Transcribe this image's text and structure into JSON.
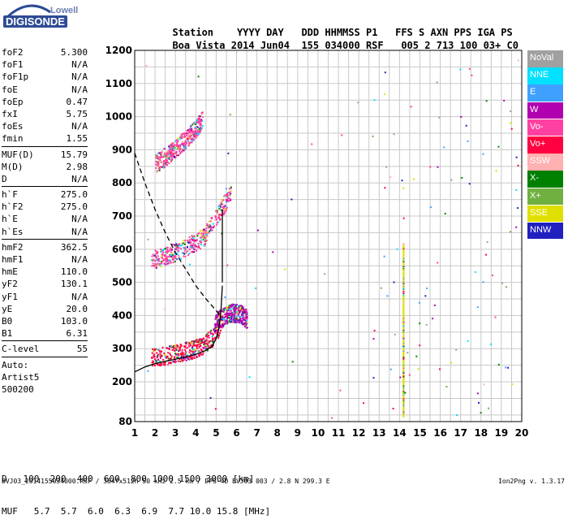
{
  "logo": {
    "top": "Lowell",
    "bottom": "DIGISONDE"
  },
  "header": {
    "labels": [
      "Station",
      "YYYY",
      "DAY",
      "DDD",
      "HHMMSS",
      "P1",
      "FFS",
      "S",
      "AXN",
      "PPS",
      "IGA",
      "PS"
    ],
    "values": [
      "Boa Vista",
      "2014",
      "Jun04",
      "155",
      "034000",
      "RSF",
      "005",
      "2",
      "713",
      "100",
      "03+",
      "C0"
    ]
  },
  "params": [
    [
      {
        "k": "foF2",
        "v": "5.300"
      },
      {
        "k": "foF1",
        "v": "N/A"
      },
      {
        "k": "foF1p",
        "v": "N/A"
      },
      {
        "k": "foE",
        "v": "N/A"
      },
      {
        "k": "foEp",
        "v": "0.47"
      },
      {
        "k": "fxI",
        "v": "5.75"
      },
      {
        "k": "foEs",
        "v": "N/A"
      },
      {
        "k": "fmin",
        "v": "1.55"
      }
    ],
    [
      {
        "k": "MUF(D)",
        "v": "15.79"
      },
      {
        "k": "M(D)",
        "v": "2.98"
      },
      {
        "k": "D",
        "v": "N/A"
      }
    ],
    [
      {
        "k": "h`F",
        "v": "275.0"
      },
      {
        "k": "h`F2",
        "v": "275.0"
      },
      {
        "k": "h`E",
        "v": "N/A"
      },
      {
        "k": "h`Es",
        "v": "N/A"
      }
    ],
    [
      {
        "k": "hmF2",
        "v": "362.5"
      },
      {
        "k": "hmF1",
        "v": "N/A"
      },
      {
        "k": "hmE",
        "v": "110.0"
      },
      {
        "k": "yF2",
        "v": "130.1"
      },
      {
        "k": "yF1",
        "v": "N/A"
      },
      {
        "k": "yE",
        "v": "20.0"
      },
      {
        "k": "B0",
        "v": "103.0"
      },
      {
        "k": "B1",
        "v": "6.31"
      }
    ],
    [
      {
        "k": "C-level",
        "v": "55"
      }
    ],
    [
      {
        "k": "Auto:",
        "v": ""
      },
      {
        "k": "Artist5",
        "v": ""
      },
      {
        "k": "500200",
        "v": ""
      }
    ]
  ],
  "legend": [
    {
      "label": "NoVal",
      "color": "#a0a0a0"
    },
    {
      "label": "NNE",
      "color": "#00e0ff"
    },
    {
      "label": "E",
      "color": "#3fa0ff"
    },
    {
      "label": "W",
      "color": "#b000b0"
    },
    {
      "label": "Vo-",
      "color": "#ff40a0"
    },
    {
      "label": "Vo+",
      "color": "#ff0040"
    },
    {
      "label": "SSW",
      "color": "#ffb0b0"
    },
    {
      "label": "X-",
      "color": "#008000"
    },
    {
      "label": "X+",
      "color": "#70b040"
    },
    {
      "label": "SSE",
      "color": "#e0e000"
    },
    {
      "label": "NNW",
      "color": "#2020c0"
    }
  ],
  "footer": {
    "row1_label": "D",
    "row1_values": "100  200  400  600  800 1000 1500 3000",
    "row1_unit": "[km]",
    "row2_label": "MUF",
    "row2_values": "5.7  5.7  6.0  6.3  6.9  7.7 10.0 15.8",
    "row2_unit": "[MHz]",
    "file": "BVJ03_2014155034000.RSF / 384fx512h 50 kHz 2.5 km / DPS-4D BVJ03 003 / 2.8 N 299.3 E",
    "version": "Ion2Png v. 1.3.17"
  },
  "chart_data": {
    "type": "scatter",
    "xlim": [
      1,
      20
    ],
    "ylim": [
      80,
      1200
    ],
    "x_ticks": [
      1,
      2,
      3,
      4,
      5,
      6,
      7,
      8,
      9,
      10,
      11,
      12,
      13,
      14,
      15,
      16,
      17,
      18,
      19,
      20
    ],
    "y_ticks": [
      80,
      200,
      300,
      400,
      500,
      600,
      700,
      800,
      900,
      1000,
      1100,
      1200
    ],
    "x_minor_step": 0.5,
    "y_minor_step": 50,
    "grid": true,
    "legend_position": "right",
    "series": [
      {
        "name": "profile",
        "style": "solid",
        "x": [
          1.0,
          1.5,
          2.0,
          2.5,
          3.0,
          3.5,
          4.0,
          4.5,
          4.8,
          5.0,
          5.1,
          5.2,
          5.25,
          5.3
        ],
        "y": [
          230,
          245,
          255,
          262,
          268,
          275,
          283,
          295,
          308,
          330,
          350,
          390,
          430,
          490
        ]
      },
      {
        "name": "profile-upper",
        "style": "solid",
        "x": [
          5.3,
          5.3,
          5.3
        ],
        "y": [
          500,
          620,
          720
        ]
      },
      {
        "name": "MUF",
        "style": "dashed",
        "x": [
          1.0,
          1.5,
          2.0,
          2.5,
          3.0,
          3.5,
          4.0,
          4.5,
          5.0,
          5.25
        ],
        "y": [
          890,
          800,
          720,
          650,
          590,
          540,
          490,
          450,
          415,
          395
        ]
      }
    ],
    "traces": [
      {
        "name": "F2 o-trace",
        "x": [
          1.8,
          2.5,
          3.2,
          3.9,
          4.4,
          4.8,
          5.1,
          5.3
        ],
        "y": [
          275,
          280,
          290,
          300,
          315,
          335,
          360,
          390
        ],
        "color": "#ff0040"
      },
      {
        "name": "F2 x-trace",
        "x": [
          4.9,
          5.4,
          5.8,
          6.2,
          6.5
        ],
        "y": [
          380,
          400,
          410,
          405,
          390
        ],
        "color": "#b000b0"
      },
      {
        "name": "2F2 trace",
        "x": [
          1.8,
          2.5,
          3.2,
          3.9,
          4.4,
          4.8,
          5.3,
          5.7
        ],
        "y": [
          570,
          580,
          600,
          620,
          640,
          680,
          730,
          770
        ],
        "color": "#ff40a0"
      },
      {
        "name": "3F2 trace",
        "x": [
          2.0,
          2.5,
          3.0,
          3.5,
          4.0,
          4.3
        ],
        "y": [
          860,
          880,
          905,
          935,
          965,
          995
        ],
        "color": "#ff40a0"
      },
      {
        "name": "interference 14.2 MHz",
        "x": [
          14.2,
          14.2
        ],
        "y": [
          100,
          620
        ],
        "color": "#e0e000"
      }
    ]
  }
}
